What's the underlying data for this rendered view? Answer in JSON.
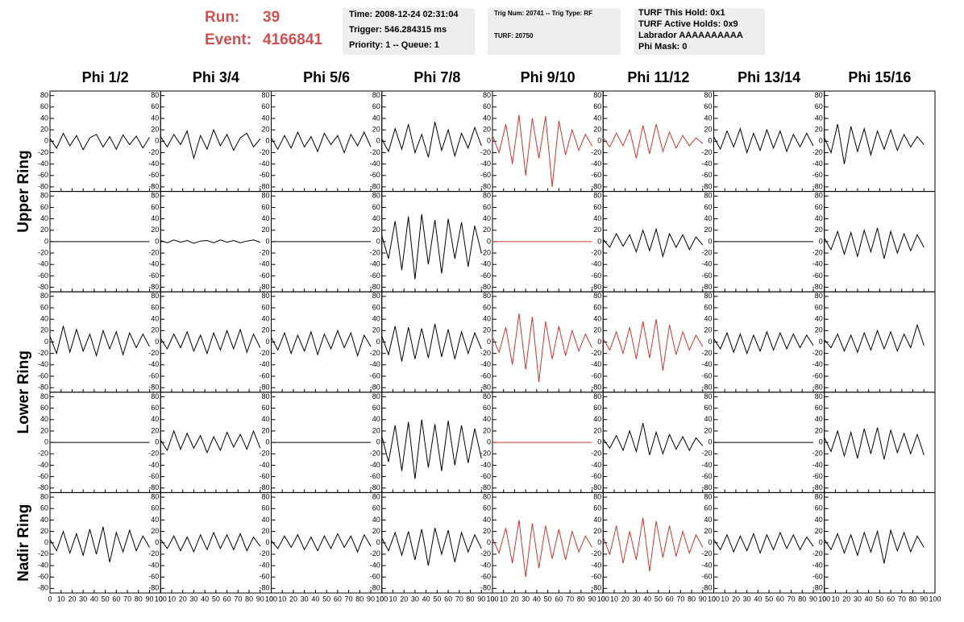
{
  "header": {
    "run_label": "Run:",
    "run": "39",
    "event_label": "Event:",
    "event": "4166841",
    "box1": [
      "Time: 2008-12-24 02:31:04",
      "Trigger: 546.284315 ms",
      "Priority: 1 -- Queue: 1"
    ],
    "box2": [
      "Trig Num: 20741 -- Trig Type: RF",
      "TURF: 20750"
    ],
    "box3": [
      "TURF This Hold: 0x1",
      "TURF Active Holds: 0x9",
      "Labrador AAAAAAAAAA",
      "Phi Mask: 0"
    ]
  },
  "chart_data": {
    "type": "line",
    "columns": [
      "Phi 1/2",
      "Phi 3/4",
      "Phi 5/6",
      "Phi 7/8",
      "Phi 9/10",
      "Phi 11/12",
      "Phi 13/14",
      "Phi 15/16"
    ],
    "rows": [
      "Upper Ring",
      "Lower Ring",
      "Nadir Ring"
    ],
    "xlim": [
      0,
      100
    ],
    "xticks": [
      0,
      10,
      20,
      30,
      40,
      50,
      60,
      70,
      80,
      90,
      100
    ],
    "ylim": [
      -88,
      88
    ],
    "yticks": [
      -80,
      -60,
      -40,
      -20,
      0,
      20,
      40,
      60,
      80
    ],
    "x": [
      0,
      6,
      12,
      18,
      24,
      30,
      36,
      42,
      48,
      54,
      60,
      66,
      72,
      78,
      84,
      90
    ],
    "series": [
      {
        "color": "#000000",
        "values": [
          5,
          -12,
          14,
          -8,
          10,
          -15,
          6,
          12,
          -10,
          8,
          -14,
          11,
          -6,
          9,
          -12,
          7
        ]
      },
      {
        "color": "#000000",
        "values": [
          8,
          -10,
          12,
          -6,
          18,
          -30,
          10,
          -14,
          20,
          -8,
          12,
          -16,
          6,
          14,
          -10,
          4
        ]
      },
      {
        "color": "#000000",
        "values": [
          6,
          -14,
          10,
          -12,
          16,
          -10,
          8,
          -18,
          14,
          -6,
          10,
          -20,
          12,
          -8,
          16,
          -10
        ]
      },
      {
        "color": "#000000",
        "values": [
          4,
          -18,
          22,
          -14,
          30,
          -20,
          12,
          -28,
          34,
          -16,
          20,
          -26,
          14,
          -12,
          24,
          -8
        ]
      },
      {
        "color": "#c8362f",
        "values": [
          10,
          -20,
          30,
          -40,
          46,
          -60,
          40,
          -30,
          44,
          -80,
          36,
          -24,
          20,
          -16,
          12,
          -8
        ]
      },
      {
        "color": "#c8362f",
        "values": [
          6,
          -10,
          14,
          -8,
          20,
          -30,
          28,
          -22,
          30,
          -18,
          16,
          -12,
          10,
          -8,
          6,
          -4
        ]
      },
      {
        "color": "#000000",
        "values": [
          8,
          -14,
          18,
          -10,
          22,
          -20,
          14,
          -16,
          20,
          -12,
          18,
          -18,
          12,
          -10,
          14,
          -8
        ]
      },
      {
        "color": "#000000",
        "values": [
          6,
          -20,
          30,
          -40,
          26,
          -18,
          22,
          -24,
          18,
          -14,
          20,
          -16,
          12,
          -10,
          8,
          -6
        ]
      },
      {
        "color": "#000000",
        "values": [
          0,
          0,
          0,
          0,
          0,
          0,
          0,
          0,
          0,
          0,
          0,
          0,
          0,
          0,
          0,
          0
        ]
      },
      {
        "color": "#000000",
        "values": [
          2,
          -2,
          3,
          -1,
          2,
          -3,
          1,
          2,
          -2,
          3,
          -1,
          2,
          -2,
          1,
          3,
          -1
        ]
      },
      {
        "color": "#000000",
        "values": [
          0,
          0,
          0,
          0,
          0,
          0,
          0,
          0,
          0,
          0,
          0,
          0,
          0,
          0,
          0,
          0
        ]
      },
      {
        "color": "#000000",
        "values": [
          10,
          -30,
          36,
          -50,
          44,
          -66,
          48,
          -40,
          38,
          -56,
          40,
          -30,
          34,
          -44,
          28,
          -20
        ]
      },
      {
        "color": "#c8362f",
        "values": [
          0,
          0,
          0,
          0,
          0,
          0,
          0,
          0,
          0,
          0,
          0,
          0,
          0,
          0,
          0,
          0
        ]
      },
      {
        "color": "#000000",
        "values": [
          4,
          -10,
          14,
          -8,
          12,
          -18,
          20,
          -16,
          22,
          -26,
          14,
          -10,
          12,
          -14,
          8,
          -6
        ]
      },
      {
        "color": "#000000",
        "values": [
          0,
          0,
          0,
          0,
          0,
          0,
          0,
          0,
          0,
          0,
          0,
          0,
          0,
          0,
          0,
          0
        ]
      },
      {
        "color": "#000000",
        "values": [
          6,
          -14,
          18,
          -22,
          16,
          -26,
          20,
          -18,
          24,
          -30,
          18,
          -20,
          14,
          -16,
          12,
          -10
        ]
      },
      {
        "color": "#000000",
        "values": [
          10,
          -20,
          28,
          -18,
          22,
          -16,
          14,
          -24,
          20,
          -12,
          18,
          -22,
          16,
          -10,
          14,
          -8
        ]
      },
      {
        "color": "#000000",
        "values": [
          6,
          -12,
          14,
          -10,
          18,
          -16,
          12,
          -20,
          16,
          -14,
          20,
          -12,
          22,
          -18,
          14,
          -10
        ]
      },
      {
        "color": "#000000",
        "values": [
          8,
          -14,
          16,
          -20,
          12,
          -16,
          18,
          -22,
          14,
          -12,
          20,
          -10,
          16,
          -24,
          12,
          -8
        ]
      },
      {
        "color": "#000000",
        "values": [
          10,
          -22,
          28,
          -34,
          26,
          -30,
          24,
          -28,
          32,
          -26,
          22,
          -30,
          18,
          -20,
          16,
          -12
        ]
      },
      {
        "color": "#c8362f",
        "values": [
          8,
          -18,
          26,
          -40,
          50,
          -48,
          44,
          -70,
          36,
          -30,
          28,
          -24,
          20,
          -16,
          14,
          -10
        ]
      },
      {
        "color": "#c8362f",
        "values": [
          6,
          -14,
          18,
          -20,
          26,
          -30,
          36,
          -28,
          40,
          -50,
          30,
          -22,
          18,
          -14,
          12,
          -8
        ]
      },
      {
        "color": "#000000",
        "values": [
          6,
          -12,
          16,
          -18,
          14,
          -20,
          12,
          -16,
          18,
          -14,
          16,
          -12,
          14,
          -10,
          12,
          -6
        ]
      },
      {
        "color": "#000000",
        "values": [
          4,
          -10,
          14,
          -16,
          12,
          -18,
          16,
          -14,
          20,
          -12,
          18,
          -16,
          14,
          -10,
          30,
          -6
        ]
      },
      {
        "color": "#000000",
        "values": [
          0,
          0,
          0,
          0,
          0,
          0,
          0,
          0,
          0,
          0,
          0,
          0,
          0,
          0,
          0,
          0
        ]
      },
      {
        "color": "#000000",
        "values": [
          4,
          -14,
          20,
          -12,
          16,
          -10,
          12,
          -18,
          10,
          -14,
          18,
          -8,
          14,
          -12,
          20,
          -10
        ]
      },
      {
        "color": "#000000",
        "values": [
          0,
          0,
          0,
          0,
          0,
          0,
          0,
          0,
          0,
          0,
          0,
          0,
          0,
          0,
          0,
          0
        ]
      },
      {
        "color": "#000000",
        "values": [
          10,
          -34,
          30,
          -50,
          36,
          -64,
          40,
          -44,
          32,
          -50,
          38,
          -40,
          30,
          -36,
          24,
          -28
        ]
      },
      {
        "color": "#c8362f",
        "values": [
          0,
          0,
          0,
          0,
          0,
          0,
          0,
          0,
          0,
          0,
          0,
          0,
          0,
          0,
          0,
          0
        ]
      },
      {
        "color": "#000000",
        "values": [
          6,
          -10,
          12,
          -14,
          20,
          -16,
          34,
          -22,
          18,
          -20,
          14,
          -12,
          10,
          -14,
          8,
          -6
        ]
      },
      {
        "color": "#000000",
        "values": [
          0,
          0,
          0,
          0,
          0,
          0,
          0,
          0,
          0,
          0,
          0,
          0,
          0,
          0,
          0,
          0
        ]
      },
      {
        "color": "#000000",
        "values": [
          8,
          -16,
          20,
          -24,
          18,
          -28,
          24,
          -20,
          26,
          -30,
          22,
          -18,
          16,
          -20,
          14,
          -22
        ]
      },
      {
        "color": "#000000",
        "values": [
          6,
          -14,
          20,
          -18,
          16,
          -22,
          24,
          -20,
          28,
          -34,
          18,
          -16,
          22,
          -14,
          12,
          -8
        ]
      },
      {
        "color": "#000000",
        "values": [
          6,
          -10,
          12,
          -14,
          10,
          -16,
          14,
          -12,
          18,
          -10,
          14,
          -12,
          16,
          -14,
          10,
          -6
        ]
      },
      {
        "color": "#000000",
        "values": [
          4,
          -10,
          12,
          -8,
          14,
          -12,
          10,
          -14,
          12,
          -10,
          16,
          -8,
          12,
          -16,
          14,
          -6
        ]
      },
      {
        "color": "#000000",
        "values": [
          8,
          -14,
          18,
          -22,
          20,
          -30,
          24,
          -40,
          26,
          -20,
          22,
          -34,
          18,
          -16,
          14,
          -10
        ]
      },
      {
        "color": "#c8362f",
        "values": [
          8,
          -18,
          26,
          -36,
          40,
          -60,
          34,
          -44,
          30,
          -28,
          24,
          -30,
          20,
          -16,
          12,
          -8
        ]
      },
      {
        "color": "#c8362f",
        "values": [
          10,
          -20,
          30,
          -36,
          20,
          -30,
          44,
          -50,
          38,
          -26,
          30,
          -24,
          20,
          -18,
          14,
          -8
        ]
      },
      {
        "color": "#000000",
        "values": [
          6,
          -12,
          14,
          -16,
          12,
          -14,
          16,
          -18,
          14,
          -12,
          18,
          -10,
          14,
          -12,
          10,
          -6
        ]
      },
      {
        "color": "#000000",
        "values": [
          6,
          -12,
          16,
          -18,
          14,
          -22,
          18,
          -16,
          20,
          -36,
          22,
          -14,
          18,
          -16,
          12,
          -8
        ]
      }
    ]
  }
}
